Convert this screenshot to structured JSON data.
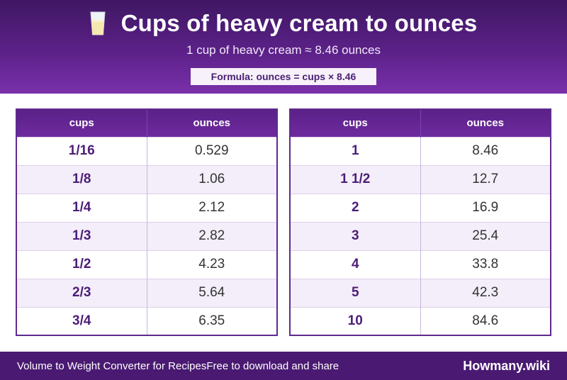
{
  "header": {
    "icon": "milk-glass-icon",
    "title": "Cups of heavy cream to ounces",
    "subtitle": "1 cup of heavy cream ≈ 8.46 ounces",
    "formula": "Formula: ounces = cups × 8.46"
  },
  "tables": [
    {
      "headers": [
        "cups",
        "ounces"
      ],
      "rows": [
        [
          "1/16",
          "0.529"
        ],
        [
          "1/8",
          "1.06"
        ],
        [
          "1/4",
          "2.12"
        ],
        [
          "1/3",
          "2.82"
        ],
        [
          "1/2",
          "4.23"
        ],
        [
          "2/3",
          "5.64"
        ],
        [
          "3/4",
          "6.35"
        ]
      ]
    },
    {
      "headers": [
        "cups",
        "ounces"
      ],
      "rows": [
        [
          "1",
          "8.46"
        ],
        [
          "1 1/2",
          "12.7"
        ],
        [
          "2",
          "16.9"
        ],
        [
          "3",
          "25.4"
        ],
        [
          "4",
          "33.8"
        ],
        [
          "5",
          "42.3"
        ],
        [
          "10",
          "84.6"
        ]
      ]
    }
  ],
  "footer": {
    "left": "Volume to Weight Converter for Recipes",
    "middle": "Free to download and share",
    "brand": "Howmany.wiki"
  },
  "colors": {
    "header_bg": "#5b2188",
    "accent": "#4c1d78",
    "footer_bg": "#4a1a72",
    "alt_row": "#f3eef9"
  }
}
